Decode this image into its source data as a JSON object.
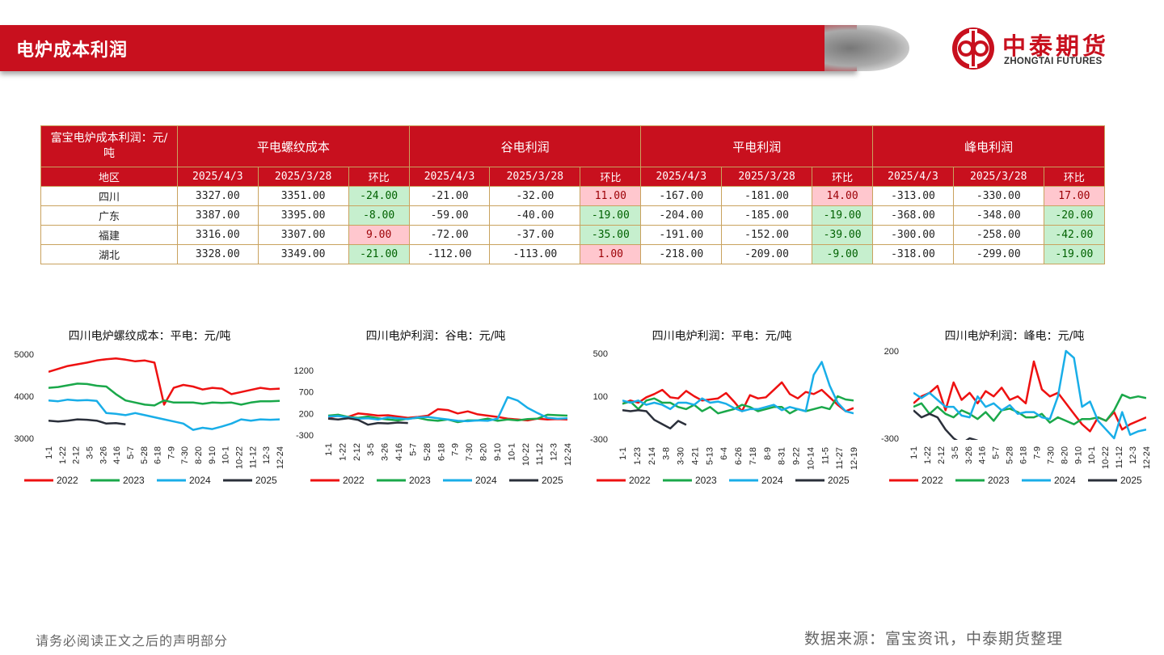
{
  "header": {
    "title": "电炉成本利润"
  },
  "logo": {
    "cn": "中泰期货",
    "en": "ZHONGTAI FUTURES"
  },
  "table": {
    "corner": "富宝电炉成本利润：元/吨",
    "groups": [
      "平电螺纹成本",
      "谷电利润",
      "平电利润",
      "峰电利润"
    ],
    "region_label": "地区",
    "sub_headers": [
      "2025/4/3",
      "2025/3/28",
      "环比"
    ],
    "rows": [
      {
        "region": "四川",
        "cells": [
          "3327.00",
          "3351.00",
          "-24.00",
          "-21.00",
          "-32.00",
          "11.00",
          "-167.00",
          "-181.00",
          "14.00",
          "-313.00",
          "-330.00",
          "17.00"
        ]
      },
      {
        "region": "广东",
        "cells": [
          "3387.00",
          "3395.00",
          "-8.00",
          "-59.00",
          "-40.00",
          "-19.00",
          "-204.00",
          "-185.00",
          "-19.00",
          "-368.00",
          "-348.00",
          "-20.00"
        ]
      },
      {
        "region": "福建",
        "cells": [
          "3316.00",
          "3307.00",
          "9.00",
          "-72.00",
          "-37.00",
          "-35.00",
          "-191.00",
          "-152.00",
          "-39.00",
          "-300.00",
          "-258.00",
          "-42.00"
        ]
      },
      {
        "region": "湖北",
        "cells": [
          "3328.00",
          "3349.00",
          "-21.00",
          "-112.00",
          "-113.00",
          "1.00",
          "-218.00",
          "-209.00",
          "-9.00",
          "-318.00",
          "-299.00",
          "-19.00"
        ]
      }
    ]
  },
  "colors": {
    "2022": "#ee1111",
    "2023": "#1aa84a",
    "2024": "#19aee8",
    "2025": "#2a2f3a",
    "brand": "#c8101e",
    "up": "#ffc7ce",
    "down": "#c6efce"
  },
  "chart_data": [
    {
      "type": "line",
      "title": "四川电炉螺纹成本：平电：元/吨",
      "ylim": [
        3000,
        5000
      ],
      "yticks": [
        3000,
        4000,
        5000
      ],
      "x_ticks": [
        "1-1",
        "1-22",
        "2-12",
        "3-5",
        "3-26",
        "4-16",
        "5-7",
        "5-28",
        "6-18",
        "7-9",
        "7-30",
        "8-20",
        "9-10",
        "10-1",
        "10-22",
        "11-12",
        "12-3",
        "12-24"
      ],
      "series": [
        {
          "name": "2022",
          "values": [
            4580,
            4650,
            4720,
            4760,
            4800,
            4850,
            4880,
            4900,
            4870,
            4830,
            4850,
            4800,
            3800,
            4200,
            4270,
            4230,
            4160,
            4200,
            4180,
            4050,
            4100,
            4150,
            4200,
            4170,
            4180
          ]
        },
        {
          "name": "2023",
          "values": [
            4200,
            4220,
            4260,
            4300,
            4290,
            4250,
            4230,
            4050,
            3900,
            3850,
            3800,
            3780,
            3900,
            3850,
            3850,
            3850,
            3820,
            3850,
            3840,
            3850,
            3800,
            3850,
            3880,
            3880,
            3890
          ]
        },
        {
          "name": "2024",
          "values": [
            3900,
            3880,
            3920,
            3900,
            3910,
            3890,
            3600,
            3580,
            3550,
            3600,
            3550,
            3500,
            3450,
            3400,
            3350,
            3200,
            3250,
            3220,
            3280,
            3350,
            3450,
            3420,
            3450,
            3440,
            3450
          ]
        },
        {
          "name": "2025",
          "values": [
            3420,
            3400,
            3420,
            3450,
            3440,
            3420,
            3350,
            3360,
            3330
          ]
        }
      ]
    },
    {
      "type": "line",
      "title": "四川电炉利润：谷电：元/吨",
      "ylim": [
        -300,
        1200
      ],
      "yticks": [
        -300,
        200,
        700,
        1200
      ],
      "x_ticks": [
        "1-1",
        "1-22",
        "2-12",
        "3-5",
        "3-26",
        "4-16",
        "5-7",
        "5-28",
        "6-18",
        "7-9",
        "7-30",
        "8-20",
        "9-10",
        "10-1",
        "10-22",
        "11-12",
        "12-3",
        "12-24"
      ],
      "series": [
        {
          "name": "2022",
          "values": [
            100,
            150,
            120,
            200,
            180,
            150,
            160,
            130,
            100,
            120,
            150,
            300,
            280,
            200,
            250,
            180,
            150,
            120,
            80,
            60,
            40,
            80,
            60,
            70,
            60
          ]
        },
        {
          "name": "2023",
          "values": [
            150,
            170,
            120,
            100,
            130,
            90,
            60,
            40,
            80,
            100,
            50,
            30,
            60,
            0,
            40,
            40,
            80,
            30,
            60,
            40,
            70,
            80,
            170,
            160,
            150
          ]
        },
        {
          "name": "2024",
          "values": [
            130,
            140,
            110,
            80,
            90,
            60,
            110,
            90,
            70,
            110,
            120,
            90,
            60,
            30,
            20,
            40,
            30,
            80,
            580,
            500,
            330,
            210,
            100,
            80,
            90
          ]
        },
        {
          "name": "2025",
          "values": [
            80,
            60,
            90,
            50,
            -60,
            -20,
            -30,
            -10,
            -21
          ]
        }
      ]
    },
    {
      "type": "line",
      "title": "四川电炉利润：平电：元/吨",
      "ylim": [
        -300,
        500
      ],
      "yticks": [
        -300,
        100,
        500
      ],
      "x_ticks": [
        "1-1",
        "1-23",
        "2-14",
        "3-8",
        "3-30",
        "4-21",
        "5-13",
        "6-4",
        "6-26",
        "7-18",
        "8-9",
        "8-31",
        "9-22",
        "10-14",
        "11-5",
        "11-27",
        "12-19"
      ],
      "series": [
        {
          "name": "2022",
          "values": [
            30,
            60,
            40,
            90,
            120,
            160,
            90,
            80,
            150,
            100,
            60,
            70,
            80,
            130,
            50,
            -40,
            110,
            80,
            90,
            160,
            230,
            120,
            80,
            140,
            120,
            160,
            90,
            20,
            -40,
            -10
          ]
        },
        {
          "name": "2023",
          "values": [
            30,
            50,
            -20,
            60,
            80,
            40,
            40,
            0,
            -20,
            20,
            -40,
            0,
            -60,
            -40,
            -20,
            20,
            0,
            -40,
            -20,
            0,
            0,
            -60,
            -20,
            -40,
            -20,
            0,
            -20,
            100,
            70,
            60
          ]
        },
        {
          "name": "2024",
          "values": [
            60,
            40,
            60,
            20,
            40,
            20,
            -20,
            40,
            40,
            20,
            80,
            40,
            50,
            30,
            -10,
            -40,
            -20,
            -20,
            0,
            20,
            -30,
            0,
            -20,
            -40,
            300,
            420,
            200,
            40,
            -40,
            -60
          ]
        },
        {
          "name": "2025",
          "values": [
            -30,
            -40,
            -30,
            -40,
            -120,
            -160,
            -200,
            -130,
            -167
          ]
        }
      ]
    },
    {
      "type": "line",
      "title": "四川电炉利润：峰电：元/吨",
      "ylim": [
        -300,
        200
      ],
      "yticks": [
        -300,
        200
      ],
      "x_ticks": [
        "1-1",
        "1-22",
        "2-12",
        "3-5",
        "3-26",
        "4-16",
        "5-7",
        "5-28",
        "6-18",
        "7-9",
        "7-30",
        "8-20",
        "9-10",
        "10-1",
        "10-22",
        "11-12",
        "12-3",
        "12-24"
      ],
      "series": [
        {
          "name": "2022",
          "values": [
            -100,
            -60,
            -40,
            0,
            -140,
            20,
            -80,
            -40,
            -100,
            -30,
            -60,
            -10,
            -80,
            -60,
            -100,
            140,
            -20,
            -60,
            -40,
            -100,
            -160,
            -220,
            -260,
            -180,
            -200,
            -150,
            -250,
            -220,
            -200,
            -180
          ]
        },
        {
          "name": "2023",
          "values": [
            -120,
            -100,
            -160,
            -120,
            -160,
            -180,
            -140,
            -160,
            -190,
            -150,
            -200,
            -140,
            -130,
            -150,
            -180,
            -180,
            -160,
            -210,
            -180,
            -200,
            -220,
            -190,
            -190,
            -180,
            -200,
            -140,
            -50,
            -70,
            -60,
            -70
          ]
        },
        {
          "name": "2024",
          "values": [
            -40,
            -70,
            -40,
            -80,
            -120,
            -120,
            -170,
            -180,
            -60,
            -120,
            -100,
            -140,
            -110,
            -160,
            -150,
            -150,
            -180,
            -190,
            -60,
            200,
            160,
            -120,
            -90,
            -200,
            -250,
            -300,
            -150,
            -280,
            -260,
            -250
          ]
        },
        {
          "name": "2025",
          "values": [
            -140,
            -180,
            -160,
            -180,
            -250,
            -300,
            -330,
            -300,
            -313
          ]
        }
      ]
    }
  ],
  "footer": {
    "left": "请务必阅读正文之后的声明部分",
    "right": "数据来源：富宝资讯，中泰期货整理"
  }
}
